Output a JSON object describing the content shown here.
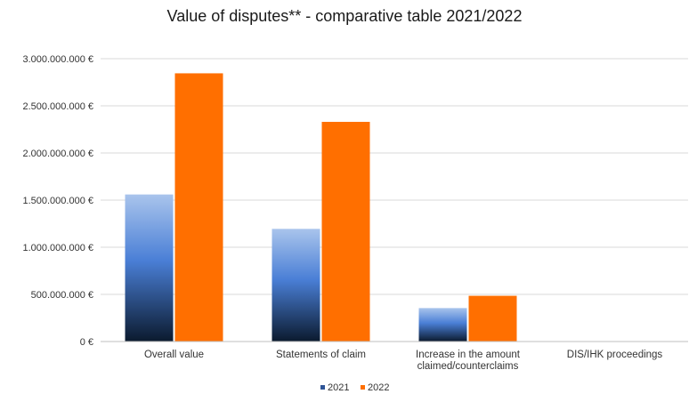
{
  "chart_data": {
    "type": "bar",
    "title": "Value of disputes** - comparative table  2021/2022",
    "categories": [
      [
        "Overall value"
      ],
      [
        "Statements of claim"
      ],
      [
        "Increase in the amount",
        "claimed/counterclaims"
      ],
      [
        "DIS/IHK proceedings"
      ]
    ],
    "series": [
      {
        "name": "2021",
        "values": [
          1560000000,
          1195000000,
          355000000,
          0
        ]
      },
      {
        "name": "2022",
        "values": [
          2845000000,
          2330000000,
          485000000,
          0
        ]
      }
    ],
    "ylim": [
      0,
      3000000000
    ],
    "yticks": [
      0,
      500000000,
      1000000000,
      1500000000,
      2000000000,
      2500000000,
      3000000000
    ],
    "ytick_labels": [
      "0 €",
      "500.000.000 €",
      "1.000.000.000 €",
      "1.500.000.000 €",
      "2.000.000.000 €",
      "2.500.000.000 €",
      "3.000.000.000 €"
    ],
    "grid": true,
    "legend_position": "bottom",
    "colors": {
      "series_2021_top": "#a9c4ec",
      "series_2021_mid": "#4a7fd6",
      "series_2021_bottom": "#0b1a2e",
      "series_2022": "#ff6f00",
      "legend_2021": "#2f5597"
    }
  }
}
